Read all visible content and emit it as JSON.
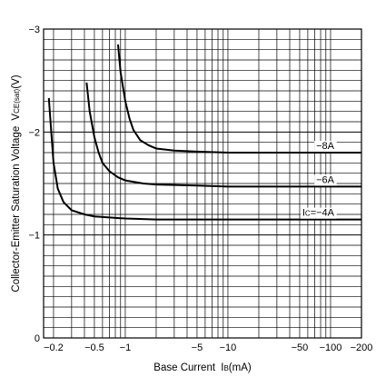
{
  "chart_data": {
    "type": "line",
    "title": "",
    "xlabel": "Base Current",
    "xlabel_symbol": "I",
    "xlabel_sub": "B",
    "xlabel_unit": "(mA)",
    "ylabel": "Collector-Emitter Saturation Voltage",
    "ylabel_symbol": "V",
    "ylabel_sub": "CE(sat)",
    "ylabel_unit": "(V)",
    "x_scale": "log",
    "xlim": [
      0.16,
      200
    ],
    "ylim": [
      0,
      -3
    ],
    "grid": true,
    "x_ticks": [
      {
        "value": 0.2,
        "label": "−0.2"
      },
      {
        "value": 0.5,
        "label": "−0.5"
      },
      {
        "value": 1,
        "label": "−1"
      },
      {
        "value": 5,
        "label": "−5"
      },
      {
        "value": 10,
        "label": "−10"
      },
      {
        "value": 50,
        "label": "−50"
      },
      {
        "value": 100,
        "label": "−100"
      },
      {
        "value": 200,
        "label": "−200"
      }
    ],
    "y_ticks": [
      {
        "value": 0,
        "label": "0"
      },
      {
        "value": -1,
        "label": "−1"
      },
      {
        "value": -2,
        "label": "−2"
      },
      {
        "value": -3,
        "label": "−3"
      }
    ],
    "series": [
      {
        "name": "−8A",
        "x": [
          0.85,
          0.9,
          1.0,
          1.1,
          1.2,
          1.4,
          1.7,
          2,
          3,
          5,
          10,
          20,
          50,
          100,
          200
        ],
        "y": [
          -2.85,
          -2.58,
          -2.3,
          -2.13,
          -2.02,
          -1.92,
          -1.87,
          -1.84,
          -1.82,
          -1.81,
          -1.8,
          -1.8,
          -1.8,
          -1.8,
          -1.8
        ]
      },
      {
        "name": "−6A",
        "x": [
          0.42,
          0.45,
          0.5,
          0.55,
          0.6,
          0.7,
          0.85,
          1,
          1.5,
          2,
          5,
          10,
          50,
          100,
          200
        ],
        "y": [
          -2.48,
          -2.2,
          -1.95,
          -1.8,
          -1.7,
          -1.62,
          -1.56,
          -1.53,
          -1.5,
          -1.49,
          -1.48,
          -1.47,
          -1.47,
          -1.47,
          -1.47
        ]
      },
      {
        "label": "I",
        "label_sub": "C",
        "label_rest": "=−4A",
        "x": [
          0.18,
          0.19,
          0.2,
          0.22,
          0.25,
          0.3,
          0.4,
          0.5,
          0.7,
          1,
          2,
          5,
          10,
          50,
          100,
          200
        ],
        "y": [
          -2.33,
          -2.0,
          -1.7,
          -1.45,
          -1.32,
          -1.24,
          -1.2,
          -1.18,
          -1.17,
          -1.16,
          -1.15,
          -1.15,
          -1.15,
          -1.15,
          -1.15,
          -1.15
        ]
      }
    ]
  }
}
